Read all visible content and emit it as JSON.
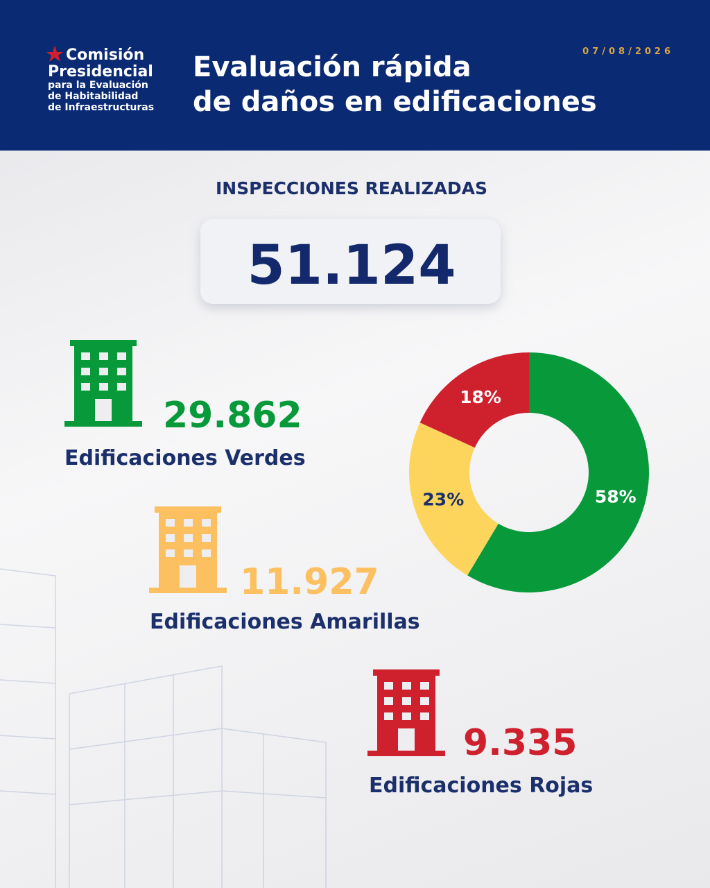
{
  "header": {
    "logo": [
      "Comisión",
      "Presidencial",
      "para la Evaluación",
      "de Habitabilidad",
      "de Infraestructuras"
    ],
    "title": [
      "Evaluación rápida",
      "de daños en edificaciones"
    ],
    "date": "07/08/2026"
  },
  "total": {
    "label": "INSPECCIONES REALIZADAS",
    "value": "51.124"
  },
  "groups": [
    {
      "value": "29.862",
      "label": "Edificaciones Verdes"
    },
    {
      "value": "11.927",
      "label": "Edificaciones Amarillas"
    },
    {
      "value": "9.335",
      "label": "Edificaciones Rojas"
    }
  ],
  "chart_data": {
    "type": "donut",
    "values": [
      58,
      23,
      18
    ],
    "value_labels": [
      "58%",
      "23%",
      "18%"
    ],
    "colors": [
      "#07993a",
      "#fdd55c",
      "#cf202e"
    ],
    "label_colors": [
      "#ffffff",
      "#1b2f6b",
      "#ffffff"
    ]
  }
}
